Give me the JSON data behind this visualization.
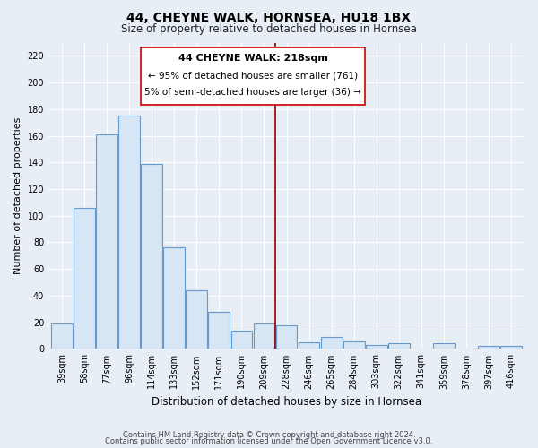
{
  "title": "44, CHEYNE WALK, HORNSEA, HU18 1BX",
  "subtitle": "Size of property relative to detached houses in Hornsea",
  "xlabel": "Distribution of detached houses by size in Hornsea",
  "ylabel": "Number of detached properties",
  "categories": [
    "39sqm",
    "58sqm",
    "77sqm",
    "96sqm",
    "114sqm",
    "133sqm",
    "152sqm",
    "171sqm",
    "190sqm",
    "209sqm",
    "228sqm",
    "246sqm",
    "265sqm",
    "284sqm",
    "303sqm",
    "322sqm",
    "341sqm",
    "359sqm",
    "378sqm",
    "397sqm",
    "416sqm"
  ],
  "values": [
    19,
    106,
    161,
    175,
    139,
    76,
    44,
    28,
    14,
    19,
    18,
    5,
    9,
    6,
    3,
    4,
    0,
    4,
    0,
    2,
    2
  ],
  "bar_fill_color": "#d6e6f4",
  "bar_edge_color": "#6699cc",
  "vline_label": "44 CHEYNE WALK: 218sqm",
  "annotation_line1": "← 95% of detached houses are smaller (761)",
  "annotation_line2": "5% of semi-detached houses are larger (36) →",
  "ylim": [
    0,
    230
  ],
  "yticks": [
    0,
    20,
    40,
    60,
    80,
    100,
    120,
    140,
    160,
    180,
    200,
    220
  ],
  "footer_line1": "Contains HM Land Registry data © Crown copyright and database right 2024.",
  "footer_line2": "Contains public sector information licensed under the Open Government Licence v3.0.",
  "background_color": "#e8eef5",
  "plot_bg_color": "#e8eef5",
  "grid_color": "#ffffff",
  "vline_color": "#990000",
  "box_edge_color": "#cc0000",
  "title_fontsize": 10,
  "subtitle_fontsize": 8.5,
  "ylabel_fontsize": 8,
  "xlabel_fontsize": 8.5,
  "tick_fontsize": 7,
  "footer_fontsize": 6,
  "annot_fontsize": 8
}
